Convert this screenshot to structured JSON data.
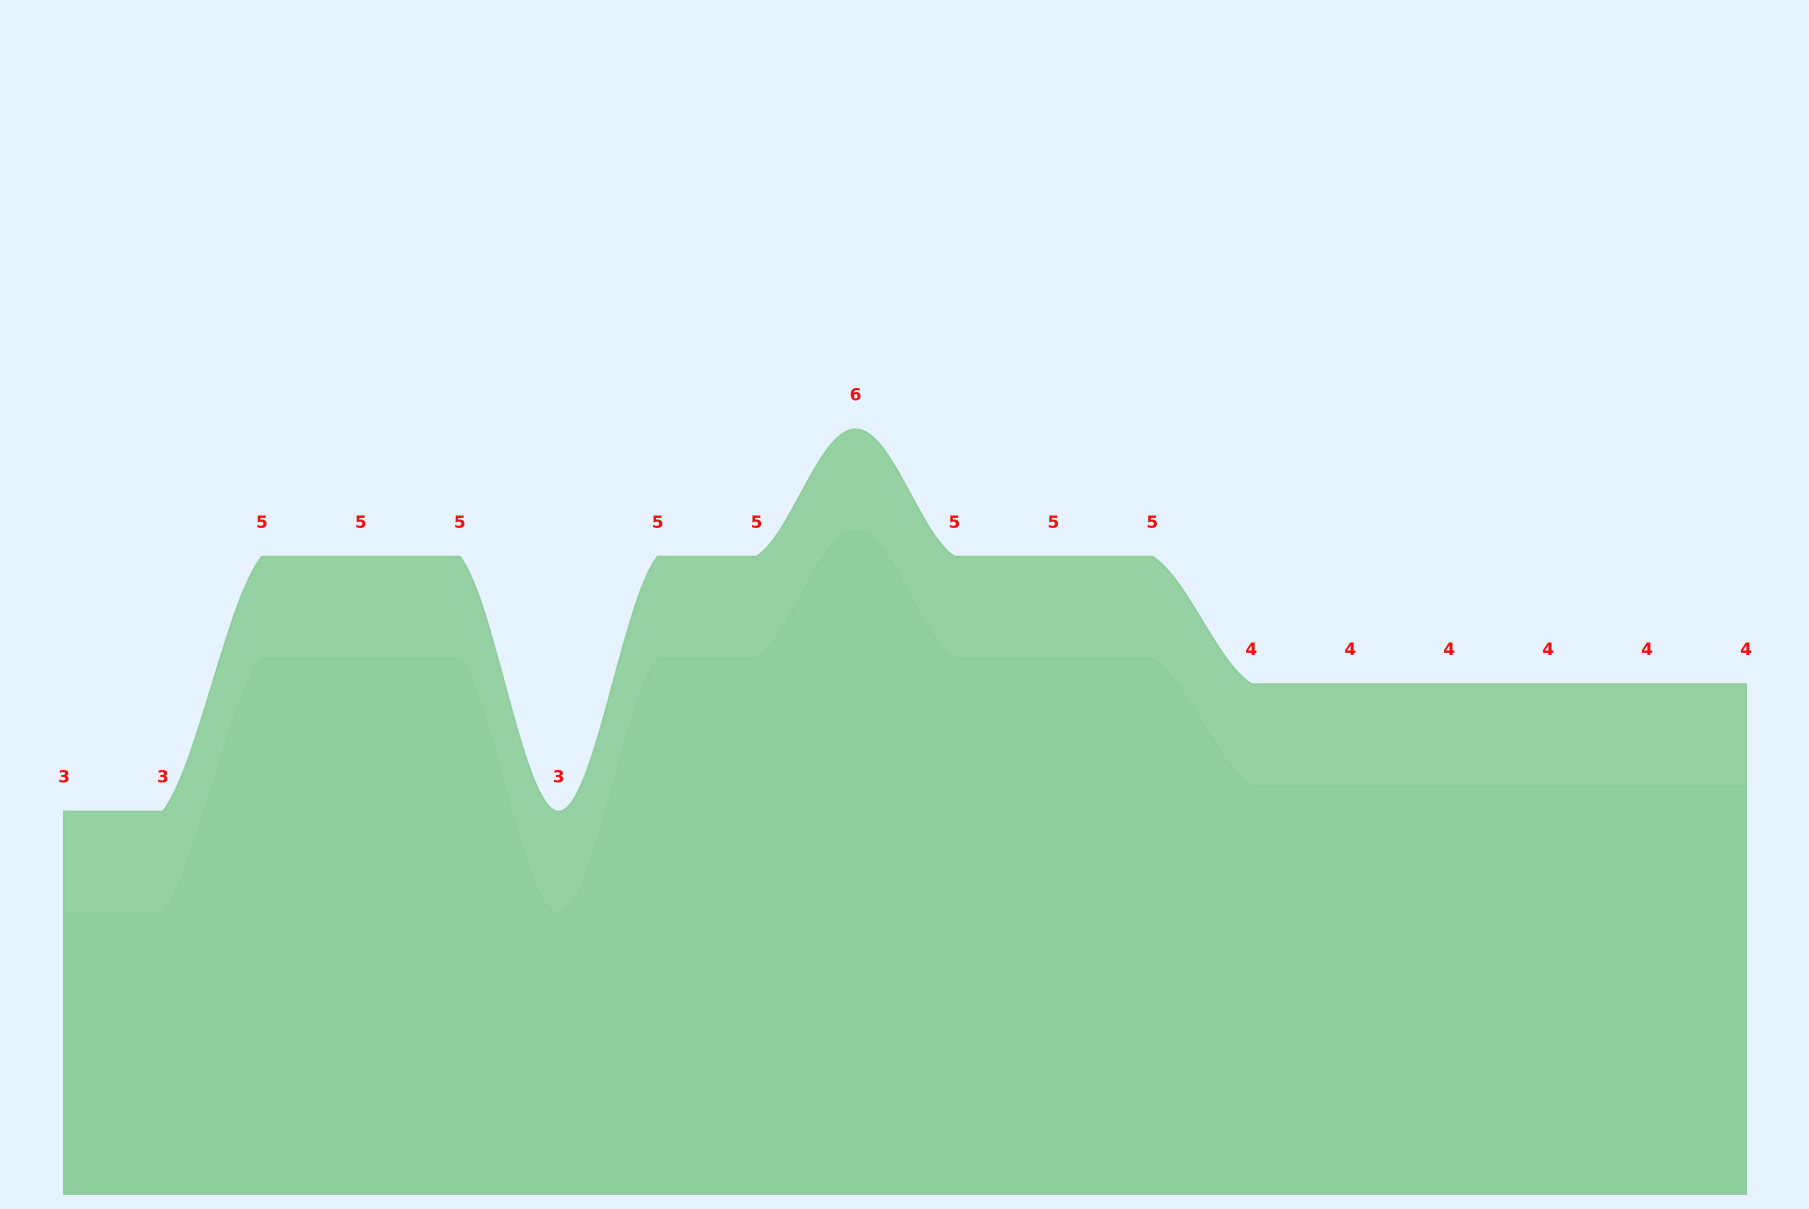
{
  "chart_data": {
    "type": "area",
    "title": "",
    "xlabel": "",
    "ylabel": "",
    "x": [
      0,
      1,
      2,
      3,
      4,
      5,
      6,
      7,
      8,
      9,
      10,
      11,
      12,
      13,
      14,
      15,
      16,
      17
    ],
    "ylim": [
      0,
      9
    ],
    "grid": false,
    "legend": "none",
    "series": [
      {
        "values": [
          3,
          3,
          5,
          5,
          5,
          3,
          5,
          5,
          6,
          5,
          5,
          5,
          4,
          4,
          4,
          4,
          4,
          4
        ],
        "color": "#8fce9c"
      },
      {
        "values": [
          2.2,
          2.2,
          4.2,
          4.2,
          4.2,
          2.2,
          4.2,
          4.2,
          5.2,
          4.2,
          4.2,
          4.2,
          3.2,
          3.2,
          3.2,
          3.2,
          3.2,
          3.2
        ],
        "color": "#8fce9c"
      }
    ],
    "data_labels": [
      "3",
      "3",
      "5",
      "5",
      "5",
      "3",
      "5",
      "5",
      "6",
      "5",
      "5",
      "5",
      "4",
      "4",
      "4",
      "4",
      "4",
      "4"
    ],
    "label_color": "#ee1111",
    "background_color": "#e6f2fd"
  }
}
